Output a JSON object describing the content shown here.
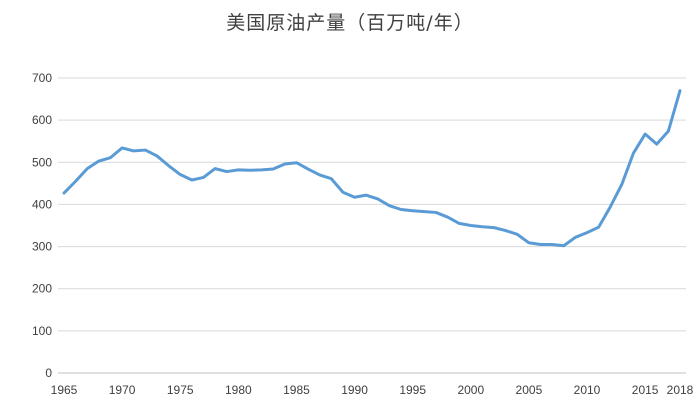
{
  "chart_data": {
    "type": "line",
    "title": "美国原油产量（百万吨/年）",
    "xlabel": "",
    "ylabel": "",
    "ylim": [
      0,
      700
    ],
    "yticks": [
      0,
      100,
      200,
      300,
      400,
      500,
      600,
      700
    ],
    "xlim": [
      1965,
      2018
    ],
    "xticks": [
      1965,
      1970,
      1975,
      1980,
      1985,
      1990,
      1995,
      2000,
      2005,
      2010,
      2015,
      2018
    ],
    "grid": true,
    "legend": "none",
    "series": [
      {
        "color": "#5B9BD5",
        "points": [
          [
            1965,
            427
          ],
          [
            1966,
            455
          ],
          [
            1967,
            485
          ],
          [
            1968,
            503
          ],
          [
            1969,
            511
          ],
          [
            1970,
            534
          ],
          [
            1971,
            527
          ],
          [
            1972,
            529
          ],
          [
            1973,
            515
          ],
          [
            1974,
            492
          ],
          [
            1975,
            471
          ],
          [
            1976,
            458
          ],
          [
            1977,
            464
          ],
          [
            1978,
            485
          ],
          [
            1979,
            478
          ],
          [
            1980,
            482
          ],
          [
            1981,
            481
          ],
          [
            1982,
            482
          ],
          [
            1983,
            484
          ],
          [
            1984,
            496
          ],
          [
            1985,
            499
          ],
          [
            1986,
            484
          ],
          [
            1987,
            470
          ],
          [
            1988,
            461
          ],
          [
            1989,
            429
          ],
          [
            1990,
            417
          ],
          [
            1991,
            422
          ],
          [
            1992,
            413
          ],
          [
            1993,
            397
          ],
          [
            1994,
            388
          ],
          [
            1995,
            385
          ],
          [
            1996,
            383
          ],
          [
            1997,
            381
          ],
          [
            1998,
            370
          ],
          [
            1999,
            355
          ],
          [
            2000,
            350
          ],
          [
            2001,
            347
          ],
          [
            2002,
            345
          ],
          [
            2003,
            338
          ],
          [
            2004,
            329
          ],
          [
            2005,
            309
          ],
          [
            2006,
            305
          ],
          [
            2007,
            305
          ],
          [
            2008,
            302
          ],
          [
            2009,
            322
          ],
          [
            2010,
            333
          ],
          [
            2011,
            346
          ],
          [
            2012,
            394
          ],
          [
            2013,
            448
          ],
          [
            2014,
            522
          ],
          [
            2015,
            567
          ],
          [
            2016,
            543
          ],
          [
            2017,
            574
          ],
          [
            2018,
            670
          ]
        ]
      }
    ]
  }
}
